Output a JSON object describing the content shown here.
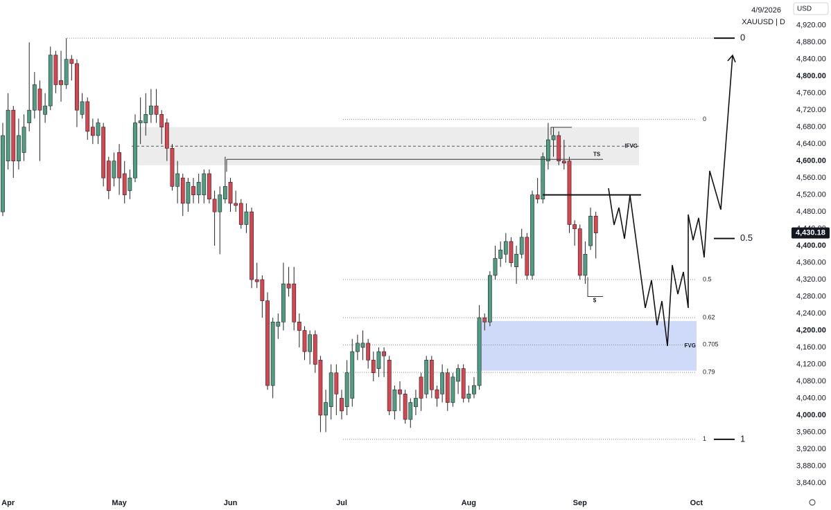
{
  "chart_data": {
    "type": "candlestick",
    "symbol": "XAUUSD | D",
    "date": "4/9/2026",
    "currency": "USD",
    "categories": [
      null,
      "Apr",
      null,
      null,
      null,
      null,
      null,
      null,
      null,
      null,
      null,
      null,
      null,
      null,
      null,
      null,
      null,
      null,
      null,
      null,
      null,
      null,
      "May",
      null,
      null,
      null,
      null,
      null,
      null,
      null,
      null,
      null,
      null,
      null,
      null,
      null,
      null,
      null,
      null,
      null,
      null,
      null,
      null,
      "Jun",
      null,
      null,
      null,
      null,
      null,
      null,
      null,
      null,
      null,
      null,
      null,
      null,
      null,
      null,
      null,
      null,
      null,
      null,
      null,
      null,
      "Jul",
      null,
      null,
      null,
      null,
      null,
      null,
      null,
      null,
      null,
      null,
      null,
      null,
      null,
      null,
      null,
      null,
      null,
      null,
      null,
      null,
      null,
      null,
      null,
      "Aug",
      null,
      null,
      null,
      null,
      null,
      null,
      null,
      null,
      null,
      null,
      null,
      null,
      null,
      null,
      null,
      null,
      null,
      null,
      null,
      null,
      "Sep",
      null,
      null,
      null,
      null,
      null,
      null,
      null,
      null,
      null,
      null,
      null,
      null,
      null,
      null,
      null,
      null,
      null,
      null,
      null,
      null,
      null,
      "Oct",
      null,
      null,
      null,
      null,
      null,
      null,
      null,
      null,
      null,
      null,
      null,
      null,
      null,
      null,
      null,
      null,
      null
    ],
    "open": [
      4480,
      4600,
      4720,
      4600,
      4620,
      4690,
      4720,
      4770,
      4710,
      4730,
      4850,
      4790,
      4780,
      4840,
      4830,
      4710,
      4740,
      4680,
      4660,
      4680,
      4600,
      4560,
      4620,
      4570,
      4530,
      4560,
      4690,
      4690,
      4710,
      4730,
      4710,
      4690,
      4630,
      4540,
      4560,
      4500,
      4540,
      4520,
      4520,
      4570,
      4510,
      4480,
      4510,
      4550,
      4500,
      4500,
      4450,
      4480,
      4320,
      4320,
      4270,
      4070,
      4210,
      4220,
      4310,
      4310,
      4220,
      4200,
      4150,
      4190,
      4130,
      4000,
      4020,
      4100,
      4040,
      4020,
      4040,
      4150,
      4160,
      4170,
      4130,
      4110,
      4150,
      4130,
      4010,
      4060,
      4050,
      3990,
      4020,
      4090,
      4050,
      4130,
      4060,
      4050,
      4100,
      4030,
      4080,
      4110,
      4040,
      4050,
      4070,
      4230,
      4220,
      4330,
      4370,
      4380,
      4410,
      4350,
      4380,
      4420,
      4330,
      4520,
      4510,
      4600,
      4650,
      4660,
      4600,
      4600,
      4450,
      4440,
      4330,
      4400,
      4470,
      null,
      null,
      null,
      null,
      null,
      null,
      null,
      null,
      null,
      null,
      null,
      null,
      null,
      null,
      null,
      null,
      null,
      null,
      null,
      null,
      null,
      null,
      null,
      null,
      null,
      null,
      null,
      null,
      null,
      null,
      null,
      null,
      null,
      null,
      null,
      null
    ],
    "high": [
      4690,
      4760,
      4730,
      4700,
      4710,
      4880,
      4810,
      4790,
      4760,
      4870,
      4860,
      4860,
      4890,
      4850,
      4840,
      4760,
      4750,
      4700,
      4700,
      4690,
      4610,
      4620,
      4640,
      4600,
      4580,
      4710,
      4750,
      4760,
      4770,
      4770,
      4720,
      4700,
      4640,
      4600,
      4570,
      4560,
      4560,
      4570,
      4580,
      4580,
      4530,
      4540,
      4610,
      4560,
      4530,
      4510,
      4500,
      4490,
      4360,
      4330,
      4290,
      4230,
      4240,
      4360,
      4350,
      4350,
      4240,
      4210,
      4200,
      4200,
      4140,
      4060,
      4120,
      4120,
      4060,
      4130,
      4180,
      4190,
      4200,
      4180,
      4150,
      4160,
      4160,
      4140,
      4070,
      4080,
      4060,
      4040,
      4060,
      4100,
      4140,
      4140,
      4070,
      4120,
      4110,
      4100,
      4120,
      4120,
      4070,
      4090,
      4260,
      4240,
      4340,
      4400,
      4410,
      4430,
      4420,
      4400,
      4440,
      4430,
      4530,
      4560,
      4620,
      4690,
      4680,
      4670,
      4650,
      4610,
      4460,
      4450,
      4410,
      4490,
      4480,
      null,
      null,
      null,
      null,
      null,
      null,
      null,
      null,
      null,
      null,
      null,
      null,
      null,
      null,
      null,
      null,
      null,
      null,
      null,
      null,
      null,
      null,
      null,
      null,
      null,
      null,
      null,
      null,
      null,
      null,
      null,
      null,
      null,
      null,
      null,
      null
    ],
    "low": [
      4470,
      4580,
      4560,
      4580,
      4600,
      4670,
      4700,
      4600,
      4690,
      4720,
      4760,
      4740,
      4770,
      4790,
      4680,
      4700,
      4650,
      4640,
      4640,
      4540,
      4510,
      4540,
      4520,
      4500,
      4510,
      4550,
      4640,
      4660,
      4690,
      4690,
      4640,
      4600,
      4530,
      4500,
      4470,
      4480,
      4500,
      4500,
      4500,
      4500,
      4400,
      4380,
      4500,
      4480,
      4480,
      4440,
      4430,
      4300,
      4300,
      4230,
      4060,
      4040,
      4180,
      4200,
      4280,
      4200,
      4160,
      4130,
      4120,
      4100,
      3960,
      3960,
      3990,
      4000,
      3990,
      4000,
      4020,
      4130,
      4130,
      4110,
      4080,
      4090,
      4090,
      4000,
      3990,
      4010,
      3980,
      3970,
      4000,
      4010,
      4040,
      4040,
      4020,
      4030,
      4010,
      4020,
      4050,
      4030,
      4030,
      4040,
      4060,
      4200,
      4210,
      4320,
      4350,
      4360,
      4350,
      4310,
      4370,
      4320,
      4320,
      4500,
      4500,
      4580,
      4610,
      4590,
      4580,
      4430,
      4400,
      4320,
      4310,
      4390,
      4370,
      null,
      null,
      null,
      null,
      null,
      null,
      null,
      null,
      null,
      null,
      null,
      null,
      null,
      null,
      null,
      null,
      null,
      null,
      null,
      null,
      null,
      null,
      null,
      null,
      null,
      null,
      null,
      null,
      null,
      null,
      null,
      null,
      null,
      null,
      null,
      null
    ],
    "close": [
      4660,
      4720,
      4600,
      4660,
      4680,
      4720,
      4780,
      4720,
      4730,
      4850,
      4780,
      4780,
      4840,
      4830,
      4720,
      4740,
      4670,
      4660,
      4690,
      4560,
      4530,
      4600,
      4560,
      4520,
      4560,
      4690,
      4695,
      4710,
      4730,
      4710,
      4680,
      4630,
      4540,
      4570,
      4500,
      4550,
      4520,
      4550,
      4570,
      4510,
      4480,
      4520,
      4540,
      4500,
      4495,
      4450,
      4480,
      4320,
      4315,
      4270,
      4070,
      4220,
      4220,
      4310,
      4300,
      4220,
      4200,
      4150,
      4190,
      4120,
      4000,
      4030,
      4100,
      4050,
      4010,
      4100,
      4150,
      4170,
      4170,
      4130,
      4100,
      4150,
      4140,
      4010,
      4060,
      4050,
      3990,
      4030,
      4040,
      4040,
      4130,
      4060,
      4040,
      4100,
      4030,
      4090,
      4110,
      4040,
      4050,
      4070,
      4230,
      4220,
      4330,
      4370,
      4390,
      4410,
      4360,
      4380,
      4420,
      4330,
      4520,
      4510,
      4610,
      4650,
      4660,
      4600,
      4595,
      4450,
      4440,
      4330,
      4380,
      4470,
      4430,
      null,
      null,
      null,
      null,
      null,
      null,
      null,
      null,
      null,
      null,
      null,
      null,
      null,
      null,
      null,
      null,
      null,
      null,
      null,
      null,
      null,
      null,
      null,
      null,
      null,
      null,
      null,
      null,
      null,
      null,
      null,
      null,
      null,
      null,
      null,
      null
    ],
    "colors": {
      "up": "#4f9d82",
      "down": "#d64550",
      "outline": "#222222"
    },
    "ylim": [
      3817,
      4980
    ],
    "yticks": [
      {
        "value": 4920,
        "label": "4,920.00"
      },
      {
        "value": 4880,
        "label": "4,880.00"
      },
      {
        "value": 4840,
        "label": "4,840.00"
      },
      {
        "value": 4800,
        "label": "4,800.00"
      },
      {
        "value": 4760,
        "label": "4,760.00"
      },
      {
        "value": 4720,
        "label": "4,720.00"
      },
      {
        "value": 4680,
        "label": "4,680.00"
      },
      {
        "value": 4640,
        "label": "4,640.00"
      },
      {
        "value": 4600,
        "label": "4,600.00"
      },
      {
        "value": 4560,
        "label": "4,560.00"
      },
      {
        "value": 4520,
        "label": "4,520.00"
      },
      {
        "value": 4480,
        "label": "4,480.00"
      },
      {
        "value": 4440,
        "label": "4,440.00"
      },
      {
        "value": 4400,
        "label": "4,400.00"
      },
      {
        "value": 4360,
        "label": "4,360.00"
      },
      {
        "value": 4320,
        "label": "4,320.00"
      },
      {
        "value": 4280,
        "label": "4,280.00"
      },
      {
        "value": 4240,
        "label": "4,240.00"
      },
      {
        "value": 4200,
        "label": "4,200.00"
      },
      {
        "value": 4160,
        "label": "4,160.00"
      },
      {
        "value": 4120,
        "label": "4,120.00"
      },
      {
        "value": 4080,
        "label": "4,080.00"
      },
      {
        "value": 4040,
        "label": "4,040.00"
      },
      {
        "value": 4000,
        "label": "4,000.00"
      },
      {
        "value": 3960,
        "label": "3,960.00"
      },
      {
        "value": 3920,
        "label": "3,920.00"
      },
      {
        "value": 3880,
        "label": "3,880.00"
      },
      {
        "value": 3840,
        "label": "3,840.00"
      }
    ],
    "grid": false,
    "last_price": {
      "value": 4430.18,
      "label": "4,430.18"
    },
    "ifvg": {
      "label": "IFVG",
      "low": 4590,
      "high": 4680,
      "line": 4635
    },
    "fvg": {
      "label": "FVG",
      "low": 4105,
      "high": 4222
    },
    "ts": {
      "label": "TS",
      "value": 4604
    },
    "sweep": {
      "label": "$",
      "value": 4280
    },
    "break_level": 4520,
    "fib": [
      {
        "label": "0",
        "value": 4698
      },
      {
        "label": "0.5",
        "value": 4320
      },
      {
        "label": "0.62",
        "value": 4230
      },
      {
        "label": "0.705",
        "value": 4166
      },
      {
        "label": "0.79",
        "value": 4101
      },
      {
        "label": "1",
        "value": 3943
      }
    ],
    "fib_major": [
      {
        "label": "0",
        "value": 4890
      },
      {
        "label": "0.5",
        "value": 4417
      },
      {
        "label": "1",
        "value": 3943
      }
    ]
  }
}
